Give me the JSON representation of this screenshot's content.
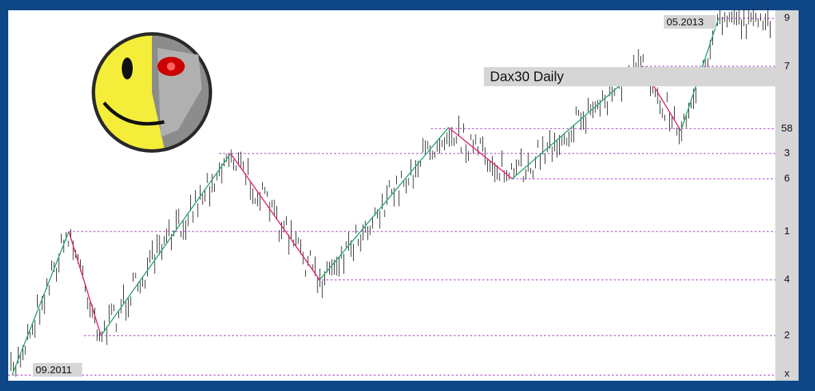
{
  "chart_data": {
    "type": "line",
    "title": "Dax30 Daily",
    "annotations": [
      "09.2011",
      "05.2013"
    ],
    "xlim": [
      0,
      100
    ],
    "ylim": [
      0,
      100
    ],
    "up_color": "#2eaa6e",
    "down_color": "#e0287a",
    "level_color": "#a020c0",
    "series": [
      {
        "x": [
          0.5,
          7.9,
          12.1,
          29.0,
          40.6,
          57.4,
          65.7,
          82.6,
          87.7,
          92.6
        ],
        "values": [
          0.4,
          39.6,
          11.2,
          60.9,
          26.4,
          68.0,
          54.0,
          84.7,
          67.1,
          97.8
        ]
      }
    ],
    "levels": [
      {
        "label": "9",
        "value": 97.8,
        "start": 92.6
      },
      {
        "label": "7",
        "value": 84.7,
        "start": 82.6
      },
      {
        "label": "58",
        "value": 67.7,
        "start": 55.1
      },
      {
        "label": "3",
        "value": 60.9,
        "start": 27.5
      },
      {
        "label": "6",
        "value": 54.0,
        "start": 65.7
      },
      {
        "label": "1",
        "value": 39.6,
        "start": 7.9
      },
      {
        "label": "4",
        "value": 26.4,
        "start": 40.4
      },
      {
        "label": "2",
        "value": 11.2,
        "start": 9.9
      },
      {
        "label": "x",
        "value": 0.4,
        "start": 0
      }
    ]
  }
}
